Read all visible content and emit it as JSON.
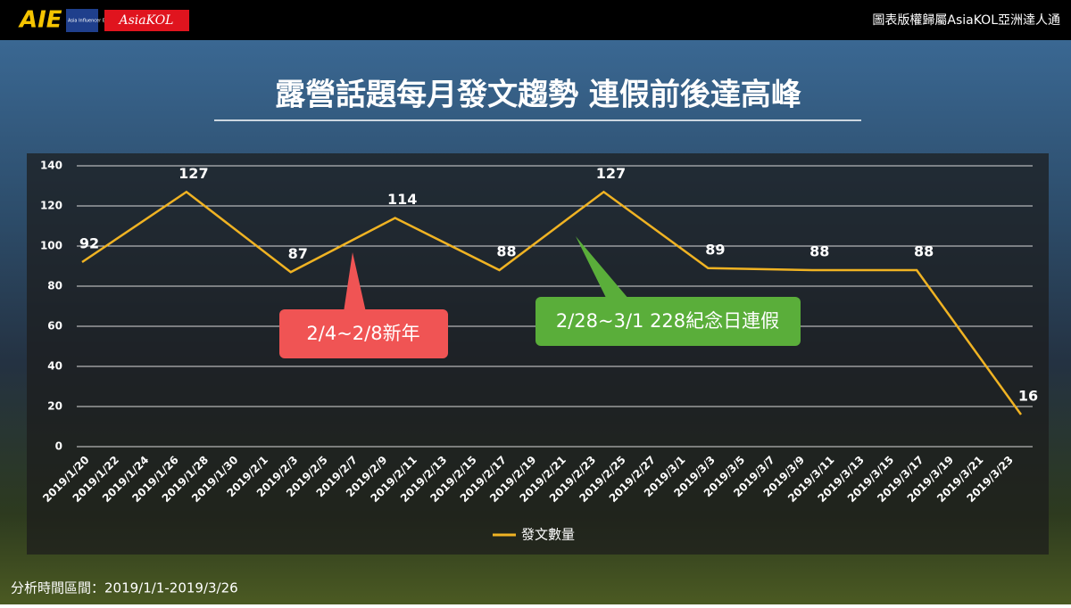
{
  "header": {
    "logo": "AIE",
    "logo_sub": "Asia Influencer Evaluation",
    "brand": "AsiaKOL",
    "copyright": "圖表版權歸屬AsiaKOL亞洲達人通"
  },
  "chart_data": {
    "type": "line",
    "title": "露營話題每月發文趨勢  連假前後達高峰",
    "x": [
      "2019/1/20",
      "2019/1/27",
      "2019/2/3",
      "2019/2/10",
      "2019/2/17",
      "2019/2/24",
      "2019/3/3",
      "2019/3/10",
      "2019/3/17",
      "2019/3/24"
    ],
    "series": [
      {
        "name": "發文數量",
        "color": "#f0b323",
        "values": [
          92,
          127,
          87,
          114,
          88,
          127,
          89,
          88,
          88,
          16
        ]
      }
    ],
    "xlim": [
      "2019/1/20",
      "2019/3/24"
    ],
    "xticks": [
      "2019/1/20",
      "2019/1/22",
      "2019/1/24",
      "2019/1/26",
      "2019/1/28",
      "2019/1/30",
      "2019/2/1",
      "2019/2/3",
      "2019/2/5",
      "2019/2/7",
      "2019/2/9",
      "2019/2/11",
      "2019/2/13",
      "2019/2/15",
      "2019/2/17",
      "2019/2/19",
      "2019/2/21",
      "2019/2/23",
      "2019/2/25",
      "2019/2/27",
      "2019/3/1",
      "2019/3/3",
      "2019/3/5",
      "2019/3/7",
      "2019/3/9",
      "2019/3/11",
      "2019/3/13",
      "2019/3/15",
      "2019/3/17",
      "2019/3/19",
      "2019/3/21",
      "2019/3/23"
    ],
    "ylim": [
      0,
      140
    ],
    "yticks": [
      0,
      20,
      40,
      60,
      80,
      100,
      120,
      140
    ],
    "grid": true,
    "legend": "bottom",
    "annotations": [
      {
        "text": "2/4~2/8新年",
        "color": "#f05454"
      },
      {
        "text": "2/28~3/1 228紀念日連假",
        "color": "#5aae3a"
      }
    ]
  },
  "footer": {
    "range": "分析時間區間：2019/1/1-2019/3/26"
  }
}
